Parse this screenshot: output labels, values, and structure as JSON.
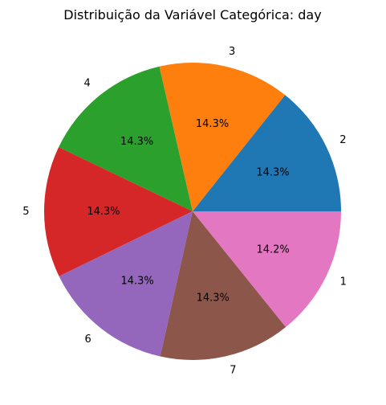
{
  "chart_data": {
    "type": "pie",
    "title": "Distribuição da Variável Categórica: day",
    "slices": [
      {
        "label": "2",
        "value": 14.3,
        "pct_label": "14.3%",
        "color": "#1f77b4"
      },
      {
        "label": "3",
        "value": 14.3,
        "pct_label": "14.3%",
        "color": "#ff7f0e"
      },
      {
        "label": "4",
        "value": 14.3,
        "pct_label": "14.3%",
        "color": "#2ca02c"
      },
      {
        "label": "5",
        "value": 14.3,
        "pct_label": "14.3%",
        "color": "#d62728"
      },
      {
        "label": "6",
        "value": 14.3,
        "pct_label": "14.3%",
        "color": "#9467bd"
      },
      {
        "label": "7",
        "value": 14.3,
        "pct_label": "14.3%",
        "color": "#8c564b"
      },
      {
        "label": "1",
        "value": 14.2,
        "pct_label": "14.2%",
        "color": "#e377c2"
      }
    ],
    "start_angle_deg": 0,
    "direction": "counterclockwise"
  }
}
